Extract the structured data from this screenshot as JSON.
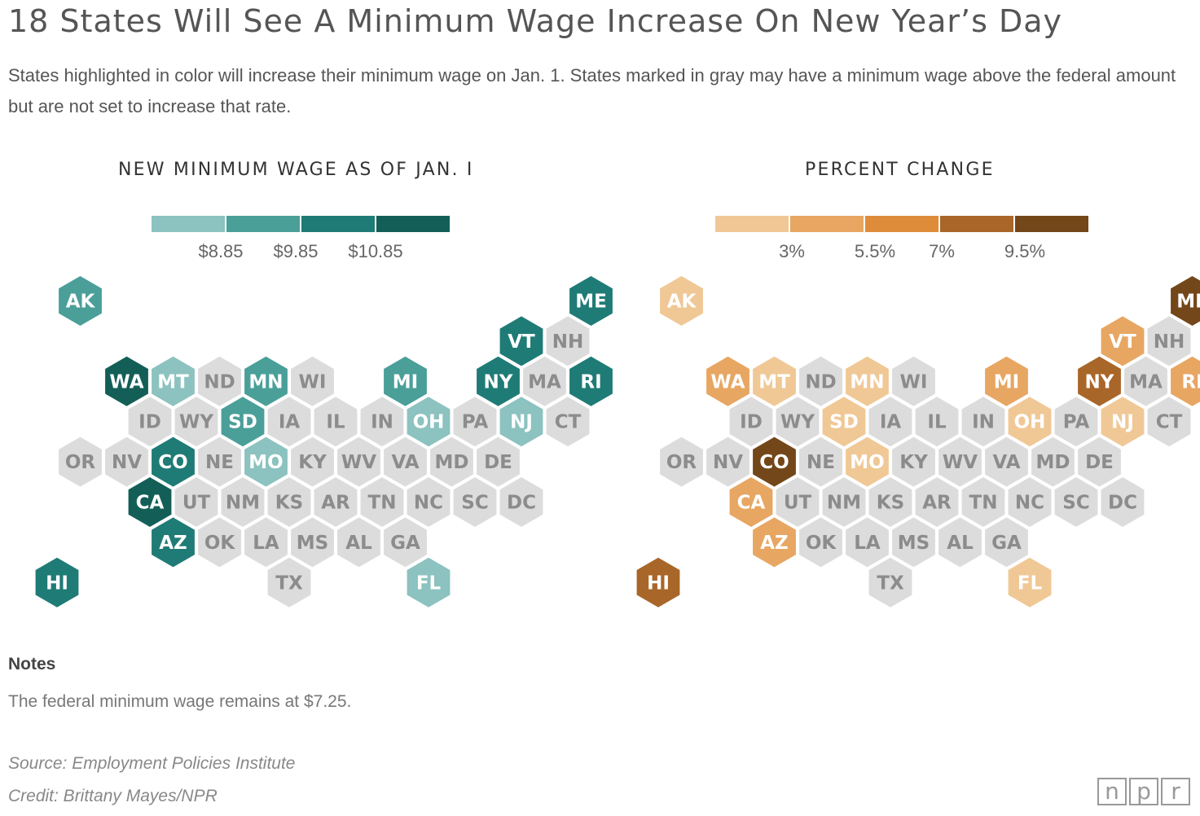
{
  "header": {
    "title": "18 States Will See A Minimum Wage Increase On New Year’s Day",
    "subtitle": "States highlighted in color will increase their minimum wage on Jan. 1. States marked in gray may have a minimum wage above the federal amount but are not set to increase that rate."
  },
  "colors": {
    "gray": "#dcdcdc",
    "gray_text": "#8c8c8c",
    "teal": [
      "#8cc2bf",
      "#4a9f99",
      "#1f7b76",
      "#135f58"
    ],
    "orange": [
      "#f0c896",
      "#e7a662",
      "#df8c3a",
      "#a96629",
      "#734719"
    ]
  },
  "chart_data": [
    {
      "type": "hex-tile-map",
      "title": "NEW MINIMUM WAGE AS OF JAN. I",
      "legend": {
        "labels": [
          "$8.85",
          "$9.85",
          "$10.85"
        ],
        "bins": 4
      },
      "states": [
        {
          "code": "AK",
          "bin": 1
        },
        {
          "code": "ME",
          "bin": 2
        },
        {
          "code": "VT",
          "bin": 2
        },
        {
          "code": "NH",
          "bin": null
        },
        {
          "code": "WA",
          "bin": 3
        },
        {
          "code": "MT",
          "bin": 0
        },
        {
          "code": "ND",
          "bin": null
        },
        {
          "code": "MN",
          "bin": 1
        },
        {
          "code": "WI",
          "bin": null
        },
        {
          "code": "MI",
          "bin": 1
        },
        {
          "code": "NY",
          "bin": 2
        },
        {
          "code": "MA",
          "bin": null
        },
        {
          "code": "RI",
          "bin": 2
        },
        {
          "code": "ID",
          "bin": null
        },
        {
          "code": "WY",
          "bin": null
        },
        {
          "code": "SD",
          "bin": 1
        },
        {
          "code": "IA",
          "bin": null
        },
        {
          "code": "IL",
          "bin": null
        },
        {
          "code": "IN",
          "bin": null
        },
        {
          "code": "OH",
          "bin": 0
        },
        {
          "code": "PA",
          "bin": null
        },
        {
          "code": "NJ",
          "bin": 0
        },
        {
          "code": "CT",
          "bin": null
        },
        {
          "code": "OR",
          "bin": null
        },
        {
          "code": "NV",
          "bin": null
        },
        {
          "code": "CO",
          "bin": 2
        },
        {
          "code": "NE",
          "bin": null
        },
        {
          "code": "MO",
          "bin": 0
        },
        {
          "code": "KY",
          "bin": null
        },
        {
          "code": "WV",
          "bin": null
        },
        {
          "code": "VA",
          "bin": null
        },
        {
          "code": "MD",
          "bin": null
        },
        {
          "code": "DE",
          "bin": null
        },
        {
          "code": "CA",
          "bin": 3
        },
        {
          "code": "UT",
          "bin": null
        },
        {
          "code": "NM",
          "bin": null
        },
        {
          "code": "KS",
          "bin": null
        },
        {
          "code": "AR",
          "bin": null
        },
        {
          "code": "TN",
          "bin": null
        },
        {
          "code": "NC",
          "bin": null
        },
        {
          "code": "SC",
          "bin": null
        },
        {
          "code": "DC",
          "bin": null
        },
        {
          "code": "AZ",
          "bin": 2
        },
        {
          "code": "OK",
          "bin": null
        },
        {
          "code": "LA",
          "bin": null
        },
        {
          "code": "MS",
          "bin": null
        },
        {
          "code": "AL",
          "bin": null
        },
        {
          "code": "GA",
          "bin": null
        },
        {
          "code": "HI",
          "bin": 2
        },
        {
          "code": "TX",
          "bin": null
        },
        {
          "code": "FL",
          "bin": 0
        }
      ]
    },
    {
      "type": "hex-tile-map",
      "title": "PERCENT CHANGE",
      "legend": {
        "labels": [
          "3%",
          "5.5%",
          "7%",
          "9.5%"
        ],
        "bins": 5
      },
      "states": [
        {
          "code": "AK",
          "bin": 0
        },
        {
          "code": "ME",
          "bin": 4
        },
        {
          "code": "VT",
          "bin": 1
        },
        {
          "code": "NH",
          "bin": null
        },
        {
          "code": "WA",
          "bin": 1
        },
        {
          "code": "MT",
          "bin": 0
        },
        {
          "code": "ND",
          "bin": null
        },
        {
          "code": "MN",
          "bin": 0
        },
        {
          "code": "WI",
          "bin": null
        },
        {
          "code": "MI",
          "bin": 1
        },
        {
          "code": "NY",
          "bin": 3
        },
        {
          "code": "MA",
          "bin": null
        },
        {
          "code": "RI",
          "bin": 1
        },
        {
          "code": "ID",
          "bin": null
        },
        {
          "code": "WY",
          "bin": null
        },
        {
          "code": "SD",
          "bin": 0
        },
        {
          "code": "IA",
          "bin": null
        },
        {
          "code": "IL",
          "bin": null
        },
        {
          "code": "IN",
          "bin": null
        },
        {
          "code": "OH",
          "bin": 0
        },
        {
          "code": "PA",
          "bin": null
        },
        {
          "code": "NJ",
          "bin": 0
        },
        {
          "code": "CT",
          "bin": null
        },
        {
          "code": "OR",
          "bin": null
        },
        {
          "code": "NV",
          "bin": null
        },
        {
          "code": "CO",
          "bin": 4
        },
        {
          "code": "NE",
          "bin": null
        },
        {
          "code": "MO",
          "bin": 0
        },
        {
          "code": "KY",
          "bin": null
        },
        {
          "code": "WV",
          "bin": null
        },
        {
          "code": "VA",
          "bin": null
        },
        {
          "code": "MD",
          "bin": null
        },
        {
          "code": "DE",
          "bin": null
        },
        {
          "code": "CA",
          "bin": 1
        },
        {
          "code": "UT",
          "bin": null
        },
        {
          "code": "NM",
          "bin": null
        },
        {
          "code": "KS",
          "bin": null
        },
        {
          "code": "AR",
          "bin": null
        },
        {
          "code": "TN",
          "bin": null
        },
        {
          "code": "NC",
          "bin": null
        },
        {
          "code": "SC",
          "bin": null
        },
        {
          "code": "DC",
          "bin": null
        },
        {
          "code": "AZ",
          "bin": 1
        },
        {
          "code": "OK",
          "bin": null
        },
        {
          "code": "LA",
          "bin": null
        },
        {
          "code": "MS",
          "bin": null
        },
        {
          "code": "AL",
          "bin": null
        },
        {
          "code": "GA",
          "bin": null
        },
        {
          "code": "HI",
          "bin": 3
        },
        {
          "code": "TX",
          "bin": null
        },
        {
          "code": "FL",
          "bin": 0
        }
      ]
    }
  ],
  "notes": {
    "heading": "Notes",
    "text": "The federal minimum wage remains at $7.25."
  },
  "footer": {
    "source": "Source: Employment Policies Institute",
    "credit": "Credit: Brittany Mayes/NPR",
    "logo_letters": [
      "n",
      "p",
      "r"
    ]
  }
}
